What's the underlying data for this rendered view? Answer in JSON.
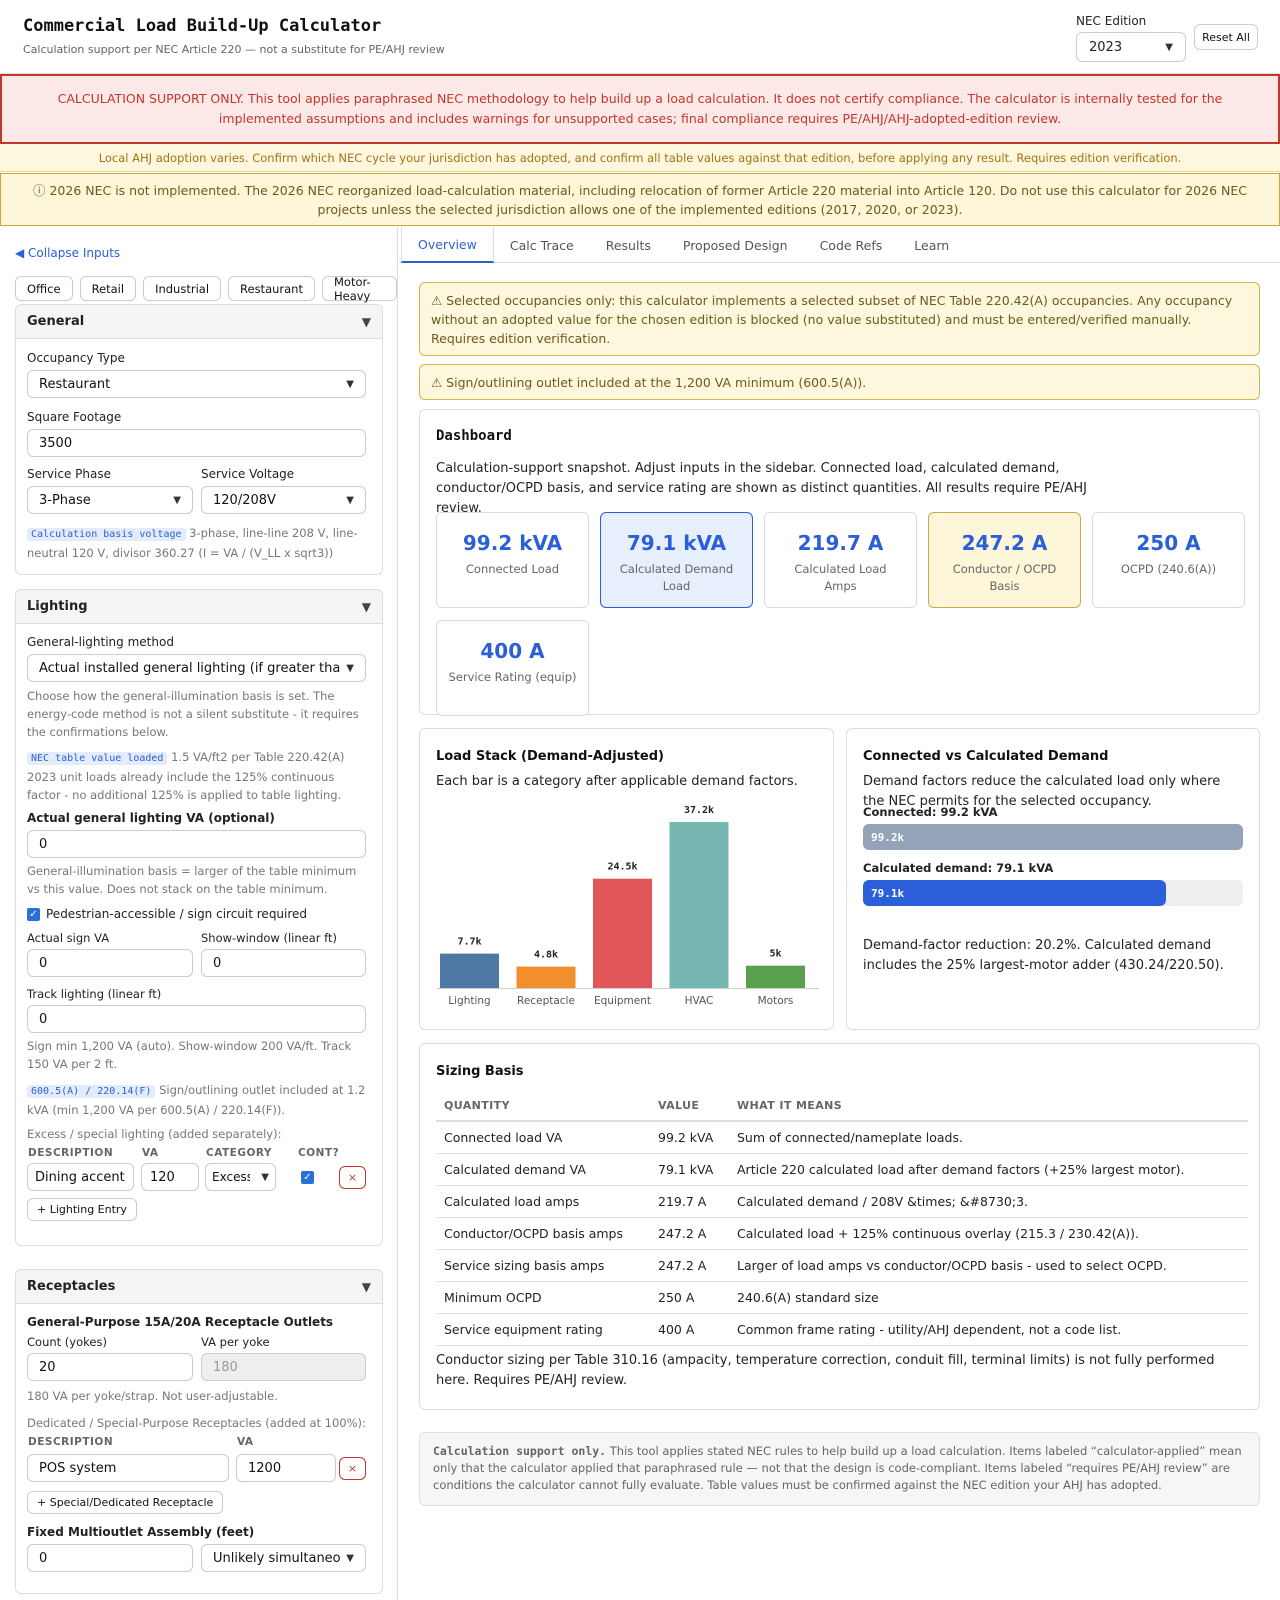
{
  "header": {
    "title": "Commercial Load Build-Up Calculator",
    "subtitle": "Calculation support per NEC Article 220 — not a substitute for PE/AHJ review",
    "nec_label": "NEC Edition",
    "nec_value": "2023",
    "reset_label": "Reset All"
  },
  "banners": {
    "red": "CALCULATION SUPPORT ONLY. This tool applies paraphrased NEC methodology to help build up a load calculation. It does not certify compliance. The calculator is internally tested for the implemented assumptions and includes warnings for unsupported cases; final compliance requires PE/AHJ/AHJ-adopted-edition review.",
    "ahj": "Local AHJ adoption varies. Confirm which NEC cycle your jurisdiction has adopted, and confirm all table values against that edition, before applying any result. Requires edition verification.",
    "nec2026": "ⓘ 2026 NEC is not implemented. The 2026 NEC reorganized load-calculation material, including relocation of former Article 220 material into Article 120. Do not use this calculator for 2026 NEC projects unless the selected jurisdiction allows one of the implemented editions (2017, 2020, or 2023)."
  },
  "sidebar": {
    "collapse_label": "◀ Collapse Inputs",
    "presets": [
      "Office",
      "Retail",
      "Industrial",
      "Restaurant",
      "Motor-Heavy"
    ],
    "general": {
      "title": "General",
      "occupancy_label": "Occupancy Type",
      "occupancy_value": "Restaurant",
      "sqft_label": "Square Footage",
      "sqft_value": "3500",
      "phase_label": "Service Phase",
      "phase_value": "3-Phase",
      "voltage_label": "Service Voltage",
      "voltage_value": "120/208V",
      "basis_tag": "Calculation basis voltage",
      "basis_text": "3-phase, line-line 208 V, line-neutral 120 V, divisor 360.27 (I = VA / (V_LL x sqrt3))"
    },
    "lighting": {
      "title": "Lighting",
      "method_label": "General-lighting method",
      "method_value": "Actual installed general lighting (if greater than",
      "method_hint": "Choose how the general-illumination basis is set. The energy-code method is not a silent substitute - it requires the confirmations below.",
      "table_tag": "NEC table value loaded",
      "table_text": "1.5 VA/ft2 per Table 220.42(A) 2023 unit loads already include the 125% continuous factor - no additional 125% is applied to table lighting.",
      "actual_label": "Actual general lighting VA (optional)",
      "actual_value": "0",
      "actual_hint": "General-illumination basis = larger of the table minimum vs this value. Does not stack on the table minimum.",
      "sign_check_label": "Pedestrian-accessible / sign circuit required",
      "sign_va_label": "Actual sign VA",
      "sign_va_value": "0",
      "show_window_label": "Show-window (linear ft)",
      "show_window_value": "0",
      "track_label": "Track lighting (linear ft)",
      "track_value": "0",
      "track_hint": "Sign min 1,200 VA (auto). Show-window 200 VA/ft. Track 150 VA per 2 ft.",
      "sign_tag": "600.5(A) / 220.14(F)",
      "sign_text": "Sign/outlining outlet included at 1.2 kVA (min 1,200 VA per 600.5(A) / 220.14(F)).",
      "excess_label": "Excess / special lighting (added separately):",
      "col_desc": "DESCRIPTION",
      "col_va": "VA",
      "col_cat": "CATEGORY",
      "col_cont": "CONT?",
      "entry_desc": "Dining accent",
      "entry_va": "120",
      "entry_cat": "Excess",
      "delete_label": "×",
      "add_label": "+ Lighting Entry"
    },
    "receptacles": {
      "title": "Receptacles",
      "gp_label": "General-Purpose 15A/20A Receptacle Outlets",
      "count_label": "Count (yokes)",
      "count_value": "20",
      "va_per_label": "VA per yoke",
      "va_per_value": "180",
      "va_hint": "180 VA per yoke/strap. Not user-adjustable.",
      "dedicated_label": "Dedicated / Special-Purpose Receptacles (added at 100%):",
      "col_desc": "DESCRIPTION",
      "col_va": "VA",
      "ded_desc": "POS system",
      "ded_va": "1200",
      "delete_label": "×",
      "add_label": "+ Special/Dedicated Receptacle",
      "multi_label": "Fixed Multioutlet Assembly (feet)",
      "multi_value": "0",
      "multi_select": "Unlikely simultaneo"
    }
  },
  "tabs": [
    "Overview",
    "Calc Trace",
    "Results",
    "Proposed Design",
    "Code Refs",
    "Learn"
  ],
  "warnings": {
    "occupancy": "⚠ Selected occupancies only: this calculator implements a selected subset of NEC Table 220.42(A) occupancies. Any occupancy without an adopted value for the chosen edition is blocked (no value substituted) and must be entered/verified manually. Requires edition verification.",
    "sign": "⚠ Sign/outlining outlet included at the 1,200 VA minimum (600.5(A))."
  },
  "dashboard": {
    "title": "Dashboard",
    "desc": "Calculation-support snapshot. Adjust inputs in the sidebar. Connected load, calculated demand, conductor/OCPD basis, and service rating are shown as distinct quantities. All results require PE/AHJ review.",
    "metrics": [
      {
        "value": "99.2 kVA",
        "caption": "Connected Load"
      },
      {
        "value": "79.1 kVA",
        "caption": "Calculated Demand Load"
      },
      {
        "value": "219.7 A",
        "caption": "Calculated Load Amps"
      },
      {
        "value": "247.2 A",
        "caption": "Conductor / OCPD Basis"
      },
      {
        "value": "250 A",
        "caption": "OCPD (240.6(A))"
      },
      {
        "value": "400 A",
        "caption": "Service Rating (equip)"
      }
    ]
  },
  "chart_data": [
    {
      "type": "bar",
      "title": "Load Stack (Demand-Adjusted)",
      "subtitle": "Each bar is a category after applicable demand factors.",
      "categories": [
        "Lighting",
        "Receptacle",
        "Equipment",
        "HVAC",
        "Motors"
      ],
      "values": [
        7.7,
        4.8,
        24.5,
        37.2,
        5
      ],
      "value_labels": [
        "7.7k",
        "4.8k",
        "24.5k",
        "37.2k",
        "5k"
      ],
      "colors": [
        "#4e79a7",
        "#f28e2b",
        "#e15759",
        "#76b7b2",
        "#59a14f"
      ],
      "ylim": [
        0,
        37.2
      ]
    },
    {
      "type": "bar",
      "title": "Connected vs Calculated Demand",
      "subtitle": "Demand factors reduce the calculated load only where the NEC permits for the selected occupancy.",
      "categories": [
        "Connected: 99.2 kVA",
        "Calculated demand: 79.1 kVA"
      ],
      "values": [
        99.2,
        79.1
      ],
      "value_labels": [
        "99.2k",
        "79.1k"
      ],
      "colors": [
        "#94a3b8",
        "#2b5fd9"
      ],
      "xlim": [
        0,
        99.2
      ]
    }
  ],
  "connected_vs": {
    "note": "Demand-factor reduction: 20.2%. Calculated demand includes the 25% largest-motor adder (430.24/220.50)."
  },
  "sizing": {
    "title": "Sizing Basis",
    "headers": [
      "QUANTITY",
      "VALUE",
      "WHAT IT MEANS"
    ],
    "rows": [
      [
        "Connected load VA",
        "99.2 kVA",
        "Sum of connected/nameplate loads."
      ],
      [
        "Calculated demand VA",
        "79.1 kVA",
        "Article 220 calculated load after demand factors (+25% largest motor)."
      ],
      [
        "Calculated load amps",
        "219.7 A",
        "Calculated demand / 208V &times; &#8730;3."
      ],
      [
        "Conductor/OCPD basis amps",
        "247.2 A",
        "Calculated load + 125% continuous overlay (215.3 / 230.42(A))."
      ],
      [
        "Service sizing basis amps",
        "247.2 A",
        "Larger of load amps vs conductor/OCPD basis - used to select OCPD."
      ],
      [
        "Minimum OCPD",
        "250 A",
        "240.6(A) standard size"
      ],
      [
        "Service equipment rating",
        "400 A",
        "Common frame rating - utility/AHJ dependent, not a code list."
      ]
    ],
    "note": "Conductor sizing per Table 310.16 (ampacity, temperature correction, conduit fill, terminal limits) is not fully performed here. Requires PE/AHJ review."
  },
  "footer": {
    "bold": "Calculation support only.",
    "text": "This tool applies stated NEC rules to help build up a load calculation. Items labeled “calculator-applied” mean only that the calculator applied that paraphrased rule — not that the design is code-compliant. Items labeled “requires PE/AHJ review” are conditions the calculator cannot fully evaluate. Table values must be confirmed against the NEC edition your AHJ has adopted."
  }
}
